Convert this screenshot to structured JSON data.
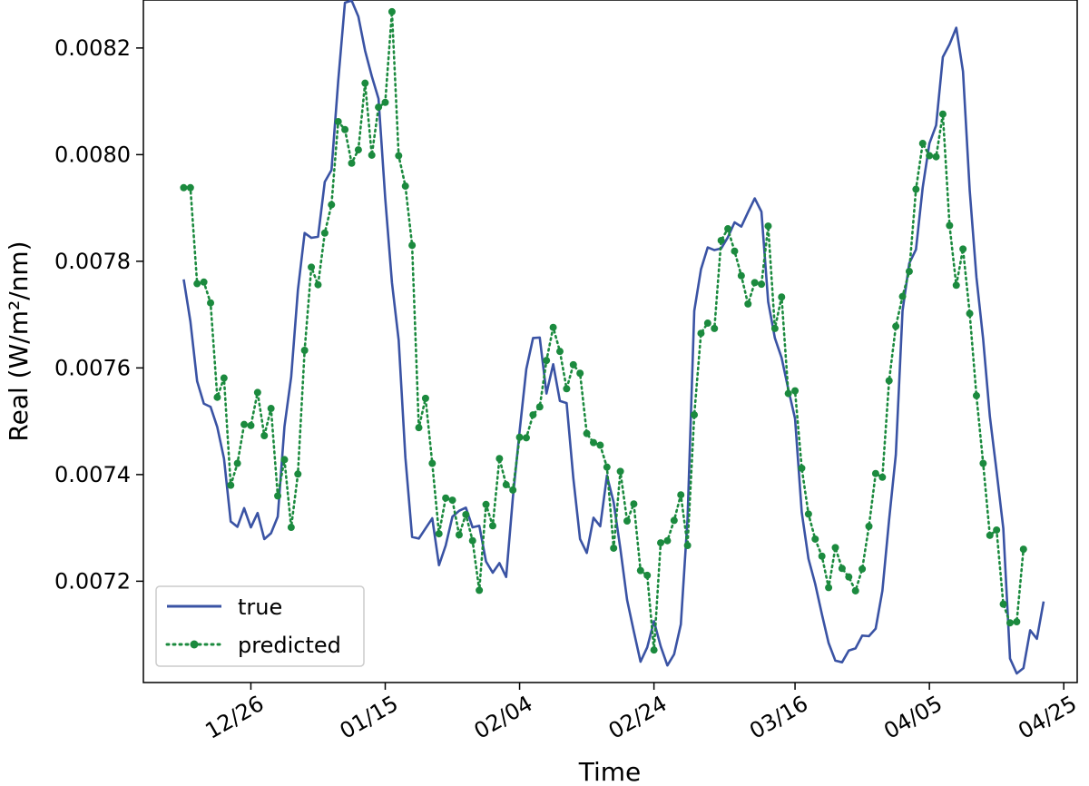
{
  "chart_data": {
    "type": "line",
    "xlabel": "Time",
    "ylabel": "Real (W/m²/nm)",
    "xlim": [
      "2023-12-10",
      "2024-04-27"
    ],
    "ylim": [
      0.00701,
      0.00829
    ],
    "x_ticks": [
      {
        "date": "2023-12-26",
        "label": "12/26"
      },
      {
        "date": "2024-01-15",
        "label": "01/15"
      },
      {
        "date": "2024-02-04",
        "label": "02/04"
      },
      {
        "date": "2024-02-24",
        "label": "02/24"
      },
      {
        "date": "2024-03-16",
        "label": "03/16"
      },
      {
        "date": "2024-04-05",
        "label": "04/05"
      },
      {
        "date": "2024-04-25",
        "label": "04/25"
      }
    ],
    "y_ticks": [
      {
        "value": 0.0072,
        "label": "0.0072"
      },
      {
        "value": 0.0074,
        "label": "0.0074"
      },
      {
        "value": 0.0076,
        "label": "0.0076"
      },
      {
        "value": 0.0078,
        "label": "0.0078"
      },
      {
        "value": 0.008,
        "label": "0.0080"
      },
      {
        "value": 0.0082,
        "label": "0.0082"
      }
    ],
    "grid": false,
    "legend_position": "lower-left",
    "start_date": "2023-12-16",
    "series": [
      {
        "name": "true",
        "style": "solid",
        "color": "#3a53a4",
        "values": [
          0.007766,
          0.007687,
          0.007575,
          0.007533,
          0.007527,
          0.007489,
          0.00743,
          0.007312,
          0.007302,
          0.007337,
          0.007301,
          0.007328,
          0.007279,
          0.00729,
          0.007321,
          0.00749,
          0.007583,
          0.007746,
          0.007853,
          0.007844,
          0.007846,
          0.007949,
          0.007971,
          0.008138,
          0.008285,
          0.008289,
          0.008259,
          0.008195,
          0.008147,
          0.008105,
          0.007918,
          0.00776,
          0.007652,
          0.007432,
          0.007283,
          0.00728,
          0.007299,
          0.007318,
          0.00723,
          0.007267,
          0.007321,
          0.007332,
          0.007338,
          0.007301,
          0.007304,
          0.007237,
          0.007216,
          0.007234,
          0.007208,
          0.007357,
          0.007481,
          0.007598,
          0.007656,
          0.007657,
          0.007552,
          0.007607,
          0.007538,
          0.007534,
          0.007393,
          0.007279,
          0.007253,
          0.007319,
          0.007303,
          0.007398,
          0.007348,
          0.007261,
          0.007165,
          0.007106,
          0.007049,
          0.007076,
          0.007125,
          0.007078,
          0.007042,
          0.007063,
          0.007119,
          0.007317,
          0.007707,
          0.007785,
          0.007826,
          0.007821,
          0.007824,
          0.007845,
          0.007873,
          0.007865,
          0.007892,
          0.007918,
          0.007893,
          0.007724,
          0.007656,
          0.007619,
          0.00756,
          0.007505,
          0.007329,
          0.007242,
          0.007195,
          0.007138,
          0.007084,
          0.007051,
          0.007048,
          0.00707,
          0.007074,
          0.007098,
          0.007097,
          0.007111,
          0.007182,
          0.007315,
          0.007437,
          0.007707,
          0.007796,
          0.007822,
          0.007938,
          0.008021,
          0.008055,
          0.008183,
          0.008207,
          0.008238,
          0.008156,
          0.007933,
          0.00777,
          0.007654,
          0.007509,
          0.007406,
          0.007299,
          0.007055,
          0.007027,
          0.007037,
          0.007108,
          0.007092,
          0.007162
        ]
      },
      {
        "name": "predicted",
        "style": "dotted-markers",
        "color": "#1b8a3e",
        "values": [
          0.007938,
          0.007938,
          0.007758,
          0.007761,
          0.007722,
          0.007545,
          0.007581,
          0.00738,
          0.007421,
          0.007494,
          0.007492,
          0.007554,
          0.007473,
          0.007524,
          0.00736,
          0.007428,
          0.007301,
          0.007401,
          0.007633,
          0.007789,
          0.007756,
          0.007853,
          0.007906,
          0.008062,
          0.008047,
          0.007984,
          0.008009,
          0.008134,
          0.007999,
          0.008089,
          0.008098,
          0.008268,
          0.007998,
          0.007941,
          0.00783,
          0.007488,
          0.007543,
          0.007421,
          0.007289,
          0.007356,
          0.007352,
          0.007287,
          0.007325,
          0.007276,
          0.007183,
          0.007344,
          0.007304,
          0.00743,
          0.007381,
          0.007371,
          0.00747,
          0.007469,
          0.007512,
          0.007527,
          0.007614,
          0.007676,
          0.007631,
          0.007561,
          0.007606,
          0.00759,
          0.007477,
          0.00746,
          0.007455,
          0.007414,
          0.007262,
          0.007406,
          0.007313,
          0.007345,
          0.00722,
          0.007211,
          0.007071,
          0.007272,
          0.007276,
          0.007314,
          0.007362,
          0.007267,
          0.007512,
          0.007665,
          0.007684,
          0.007674,
          0.007839,
          0.007861,
          0.007819,
          0.007773,
          0.00772,
          0.00776,
          0.007757,
          0.007866,
          0.007674,
          0.007733,
          0.007552,
          0.007557,
          0.007412,
          0.007326,
          0.007279,
          0.007247,
          0.007188,
          0.007263,
          0.007224,
          0.007208,
          0.007182,
          0.007223,
          0.007303,
          0.007402,
          0.007395,
          0.007576,
          0.007678,
          0.007734,
          0.007781,
          0.007935,
          0.008021,
          0.007998,
          0.007996,
          0.008076,
          0.007867,
          0.007755,
          0.007823,
          0.007702,
          0.007548,
          0.007421,
          0.007286,
          0.007296,
          0.007157,
          0.007122,
          0.007124,
          0.00726
        ]
      }
    ]
  }
}
